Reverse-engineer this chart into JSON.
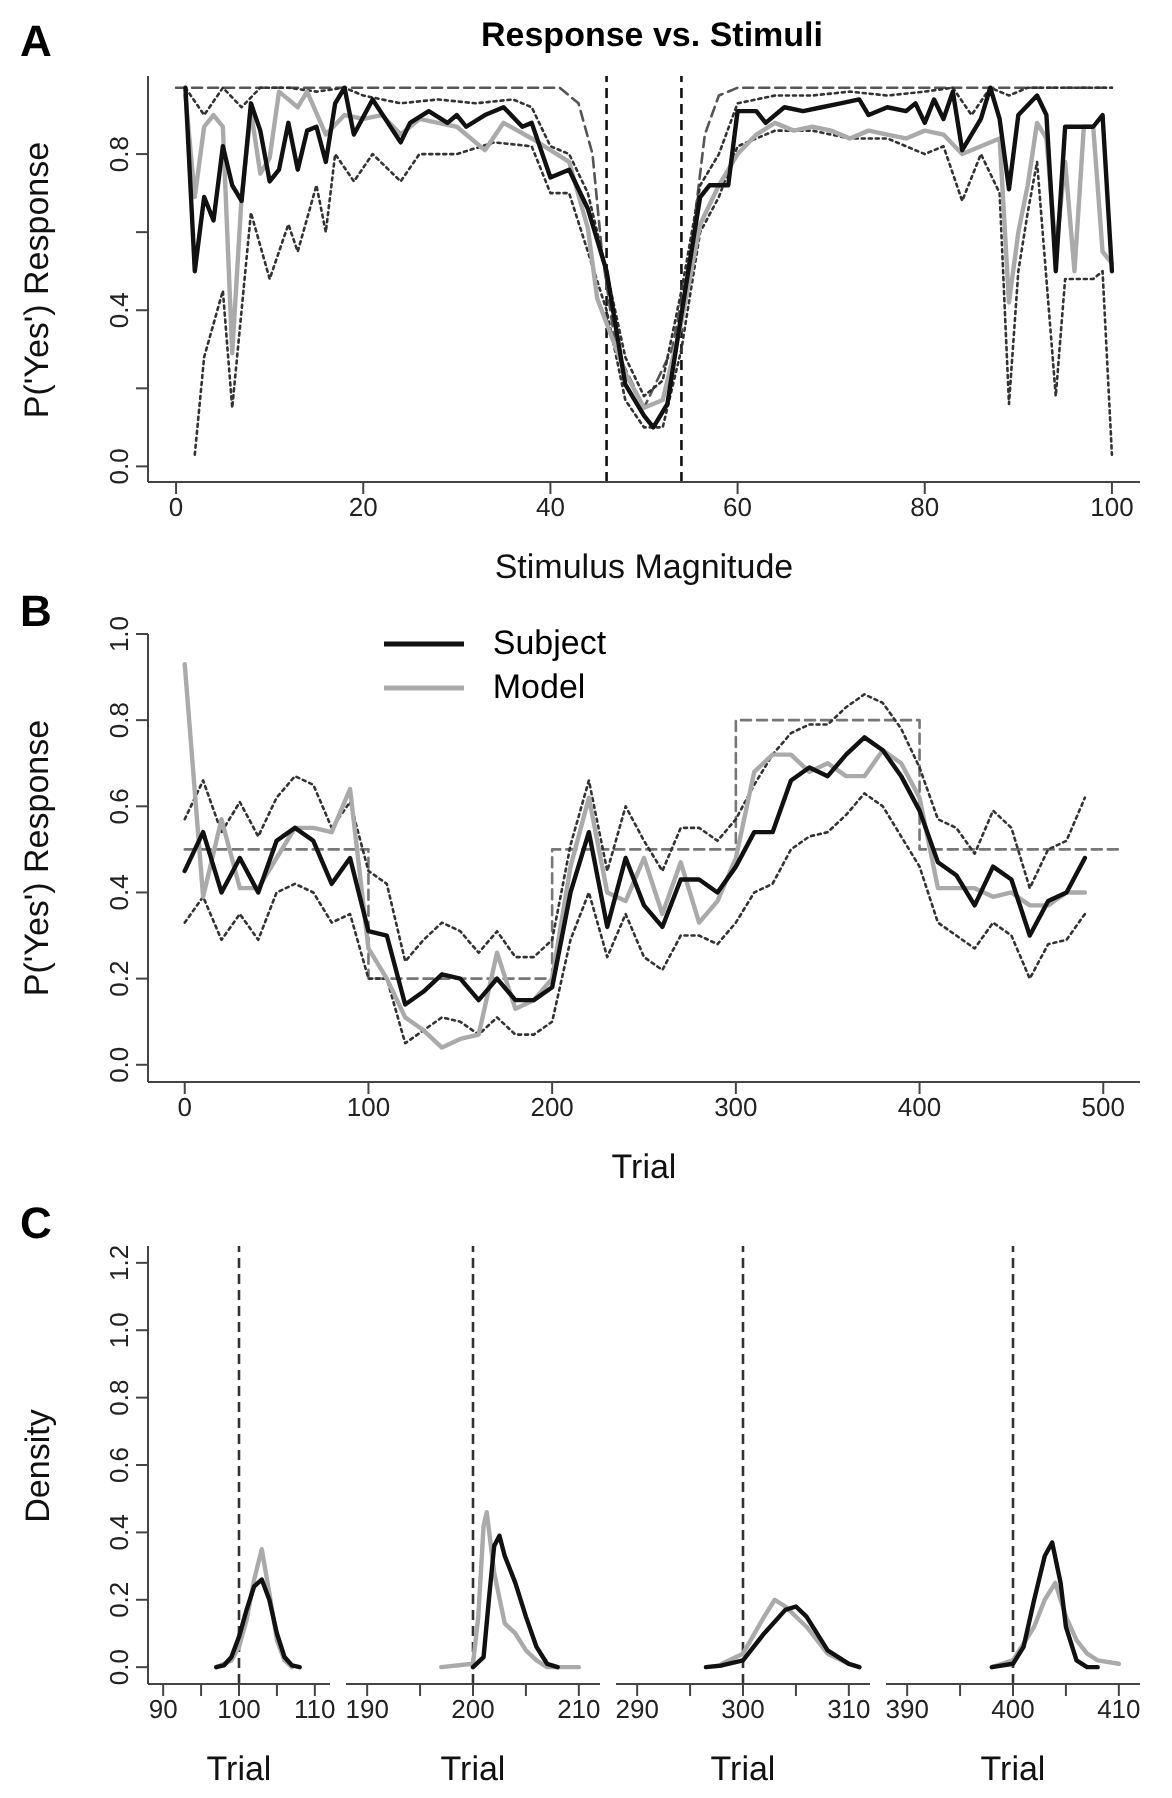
{
  "chart_data": [
    {
      "type": "line",
      "title": "Response vs. Stimuli",
      "annotations": [
        "A"
      ],
      "xlabel": "Stimulus Magnitude",
      "ylabel": "P('Yes') Response",
      "xlim": [
        -3,
        103
      ],
      "xticks": [
        0,
        20,
        40,
        60,
        80,
        100
      ],
      "ylim": [
        -0.04,
        1.0
      ],
      "yticks": [
        {
          "value": 0,
          "label": "0.0"
        },
        {
          "value": 0.2,
          "label": null
        },
        {
          "value": 0.4,
          "label": "0.4"
        },
        {
          "value": 0.6,
          "label": null
        },
        {
          "value": 0.8,
          "label": "0.8"
        }
      ],
      "legend": false,
      "ref_lines": [
        {
          "axis": "x",
          "value": 46,
          "color": "#111111",
          "line_style": "dashed"
        },
        {
          "axis": "x",
          "value": 54,
          "color": "#111111",
          "line_style": "dashed"
        }
      ],
      "series": [
        {
          "type": "line",
          "color": "#555555",
          "line_style": "dashed",
          "x": [
            0,
            41,
            43,
            44.5,
            45.5,
            47,
            50,
            53,
            55,
            56.5,
            58,
            60,
            100
          ],
          "values": [
            0.97,
            0.97,
            0.93,
            0.8,
            0.55,
            0.3,
            0.15,
            0.3,
            0.55,
            0.85,
            0.95,
            0.97,
            0.97
          ]
        },
        {
          "type": "line",
          "color": "#333333",
          "line_style": "dotted",
          "x": [
            1,
            3,
            5,
            7,
            9,
            12,
            15,
            18,
            20,
            24,
            28,
            32,
            36,
            38,
            40,
            42,
            44,
            46,
            48,
            50,
            52,
            54,
            56,
            58,
            60,
            64,
            68,
            72,
            76,
            80,
            83,
            85,
            87,
            89,
            91,
            94,
            96,
            100
          ],
          "values": [
            0.97,
            0.9,
            0.97,
            0.92,
            0.97,
            0.97,
            0.96,
            0.97,
            0.95,
            0.93,
            0.94,
            0.93,
            0.94,
            0.92,
            0.82,
            0.8,
            0.7,
            0.5,
            0.28,
            0.18,
            0.22,
            0.45,
            0.72,
            0.8,
            0.93,
            0.95,
            0.95,
            0.96,
            0.95,
            0.96,
            0.97,
            0.9,
            0.97,
            0.95,
            0.97,
            0.97,
            0.97,
            0.97
          ]
        },
        {
          "type": "line",
          "color": "#333333",
          "line_style": "dotted",
          "x": [
            2,
            3,
            5,
            6,
            8,
            10,
            12,
            13,
            15,
            16,
            17,
            19,
            21,
            24,
            26,
            30,
            34,
            38,
            40,
            42,
            44,
            46,
            48,
            50,
            52,
            54,
            56,
            58,
            60,
            64,
            68,
            72,
            76,
            80,
            82,
            84,
            86,
            88,
            89,
            90,
            91,
            92,
            94,
            95,
            98,
            99,
            100
          ],
          "values": [
            0.03,
            0.28,
            0.45,
            0.15,
            0.65,
            0.48,
            0.62,
            0.55,
            0.72,
            0.6,
            0.8,
            0.73,
            0.8,
            0.73,
            0.8,
            0.8,
            0.83,
            0.82,
            0.7,
            0.7,
            0.55,
            0.4,
            0.17,
            0.1,
            0.1,
            0.3,
            0.6,
            0.69,
            0.82,
            0.86,
            0.86,
            0.84,
            0.84,
            0.8,
            0.82,
            0.68,
            0.8,
            0.7,
            0.16,
            0.5,
            0.65,
            0.78,
            0.18,
            0.48,
            0.48,
            0.5,
            0.03
          ]
        },
        {
          "type": "line",
          "color": "#aaaaaa",
          "line_style": "solid",
          "x": [
            1,
            2,
            3,
            4,
            5,
            6,
            7,
            8,
            9,
            10,
            11,
            12,
            13,
            14,
            16,
            18,
            20,
            22,
            24,
            26,
            28,
            30,
            33,
            35,
            38,
            40,
            42,
            44,
            45,
            48,
            50,
            52,
            54,
            56,
            58,
            60,
            62,
            64,
            66,
            68,
            70,
            72,
            74,
            76,
            78,
            80,
            82,
            84,
            86,
            88,
            89,
            90,
            91,
            92,
            93,
            94,
            95,
            96,
            97,
            98,
            99,
            100
          ],
          "values": [
            0.95,
            0.69,
            0.87,
            0.9,
            0.87,
            0.29,
            0.69,
            0.91,
            0.75,
            0.79,
            0.96,
            0.94,
            0.92,
            0.96,
            0.85,
            0.9,
            0.89,
            0.9,
            0.85,
            0.89,
            0.88,
            0.87,
            0.81,
            0.88,
            0.84,
            0.81,
            0.78,
            0.61,
            0.43,
            0.24,
            0.15,
            0.17,
            0.37,
            0.62,
            0.72,
            0.8,
            0.85,
            0.88,
            0.86,
            0.87,
            0.86,
            0.84,
            0.86,
            0.85,
            0.84,
            0.86,
            0.85,
            0.8,
            0.82,
            0.84,
            0.42,
            0.6,
            0.72,
            0.88,
            0.84,
            0.55,
            0.78,
            0.5,
            0.87,
            0.87,
            0.55,
            0.52
          ]
        },
        {
          "type": "line",
          "color": "#111111",
          "line_style": "solid",
          "x": [
            1,
            2,
            3,
            4,
            5,
            6,
            7,
            8,
            9,
            10,
            11,
            12,
            13,
            14,
            15,
            16,
            17,
            18,
            19,
            21,
            24,
            25,
            27,
            29,
            30,
            31,
            33,
            35,
            37,
            38,
            40,
            42,
            43,
            44,
            45,
            46,
            48,
            50,
            51,
            52.5,
            54,
            56,
            57,
            59,
            60,
            62,
            63,
            65,
            67,
            69,
            71,
            73,
            74,
            76,
            78,
            79,
            80,
            81,
            82,
            83,
            84,
            86,
            87,
            88,
            89,
            90,
            92,
            93,
            94,
            95,
            98,
            99,
            100
          ],
          "values": [
            0.97,
            0.5,
            0.69,
            0.63,
            0.82,
            0.72,
            0.68,
            0.93,
            0.86,
            0.73,
            0.76,
            0.88,
            0.76,
            0.86,
            0.87,
            0.78,
            0.93,
            0.97,
            0.85,
            0.94,
            0.83,
            0.88,
            0.91,
            0.88,
            0.9,
            0.87,
            0.9,
            0.92,
            0.87,
            0.88,
            0.74,
            0.76,
            0.71,
            0.66,
            0.58,
            0.5,
            0.21,
            0.13,
            0.1,
            0.16,
            0.39,
            0.69,
            0.72,
            0.72,
            0.91,
            0.91,
            0.88,
            0.92,
            0.91,
            0.92,
            0.93,
            0.94,
            0.9,
            0.92,
            0.91,
            0.93,
            0.88,
            0.94,
            0.89,
            0.96,
            0.81,
            0.89,
            0.97,
            0.89,
            0.71,
            0.9,
            0.95,
            0.9,
            0.5,
            0.87,
            0.87,
            0.9,
            0.5
          ]
        }
      ]
    },
    {
      "type": "line",
      "annotations": [
        "B"
      ],
      "xlabel": "Trial",
      "ylabel": "P('Yes') Response",
      "xlim": [
        -20,
        520
      ],
      "xticks": [
        0,
        100,
        200,
        300,
        400,
        500
      ],
      "ylim": [
        -0.04,
        1.0
      ],
      "yticks": [
        {
          "value": 0,
          "label": "0.0"
        },
        {
          "value": 0.2,
          "label": "0.2"
        },
        {
          "value": 0.4,
          "label": "0.4"
        },
        {
          "value": 0.6,
          "label": "0.6"
        },
        {
          "value": 0.8,
          "label": "0.8"
        },
        {
          "value": 1,
          "label": "1.0"
        }
      ],
      "legend": "top",
      "x": [
        0,
        10,
        20,
        30,
        40,
        50,
        60,
        70,
        80,
        90,
        100,
        110,
        120,
        130,
        140,
        150,
        160,
        170,
        180,
        190,
        200,
        210,
        220,
        230,
        240,
        250,
        260,
        270,
        280,
        290,
        300,
        310,
        320,
        330,
        340,
        350,
        360,
        370,
        380,
        390,
        400,
        410,
        420,
        430,
        440,
        450,
        460,
        470,
        480,
        490
      ],
      "series": [
        {
          "type": "step",
          "color": "#777777",
          "line_style": "dashed",
          "x": [
            0,
            100,
            200,
            300,
            400,
            510
          ],
          "values": [
            0.5,
            0.2,
            0.5,
            0.8,
            0.5,
            0.5
          ]
        },
        {
          "type": "line",
          "color": "#333333",
          "line_style": "dotted",
          "values": [
            0.57,
            0.66,
            0.54,
            0.61,
            0.53,
            0.62,
            0.67,
            0.65,
            0.55,
            0.61,
            0.45,
            0.42,
            0.24,
            0.29,
            0.33,
            0.31,
            0.26,
            0.31,
            0.25,
            0.25,
            0.29,
            0.51,
            0.66,
            0.45,
            0.6,
            0.52,
            0.45,
            0.55,
            0.55,
            0.52,
            0.57,
            0.65,
            0.72,
            0.77,
            0.79,
            0.79,
            0.83,
            0.86,
            0.84,
            0.78,
            0.69,
            0.57,
            0.55,
            0.49,
            0.59,
            0.55,
            0.41,
            0.5,
            0.52,
            0.62
          ]
        },
        {
          "type": "line",
          "color": "#333333",
          "line_style": "dotted",
          "values": [
            0.33,
            0.39,
            0.29,
            0.35,
            0.29,
            0.4,
            0.42,
            0.4,
            0.33,
            0.35,
            0.2,
            0.2,
            0.05,
            0.08,
            0.11,
            0.1,
            0.07,
            0.11,
            0.07,
            0.07,
            0.1,
            0.29,
            0.4,
            0.25,
            0.35,
            0.25,
            0.22,
            0.3,
            0.3,
            0.28,
            0.33,
            0.4,
            0.42,
            0.5,
            0.53,
            0.54,
            0.58,
            0.63,
            0.6,
            0.53,
            0.46,
            0.33,
            0.3,
            0.27,
            0.33,
            0.3,
            0.2,
            0.28,
            0.29,
            0.35
          ]
        },
        {
          "type": "line",
          "name": "Model",
          "color": "#aaaaaa",
          "line_style": "solid",
          "values": [
            0.93,
            0.39,
            0.57,
            0.41,
            0.41,
            0.48,
            0.55,
            0.55,
            0.54,
            0.64,
            0.27,
            0.2,
            0.11,
            0.08,
            0.04,
            0.06,
            0.07,
            0.26,
            0.13,
            0.15,
            0.2,
            0.46,
            0.62,
            0.4,
            0.38,
            0.48,
            0.35,
            0.47,
            0.33,
            0.38,
            0.48,
            0.68,
            0.72,
            0.72,
            0.68,
            0.7,
            0.67,
            0.67,
            0.73,
            0.7,
            0.62,
            0.41,
            0.41,
            0.41,
            0.39,
            0.4,
            0.37,
            0.37,
            0.4,
            0.4
          ]
        },
        {
          "type": "line",
          "name": "Subject",
          "color": "#111111",
          "line_style": "solid",
          "values": [
            0.45,
            0.54,
            0.4,
            0.48,
            0.4,
            0.52,
            0.55,
            0.52,
            0.42,
            0.48,
            0.31,
            0.3,
            0.14,
            0.17,
            0.21,
            0.2,
            0.15,
            0.2,
            0.15,
            0.15,
            0.18,
            0.4,
            0.54,
            0.32,
            0.48,
            0.37,
            0.32,
            0.43,
            0.43,
            0.4,
            0.46,
            0.54,
            0.54,
            0.66,
            0.69,
            0.67,
            0.72,
            0.76,
            0.73,
            0.67,
            0.59,
            0.47,
            0.44,
            0.37,
            0.46,
            0.43,
            0.3,
            0.38,
            0.4,
            0.48
          ]
        }
      ]
    },
    {
      "type": "line",
      "annotations": [
        "C"
      ],
      "xlabel": "Trial",
      "ylabel": "Density",
      "xlim": [
        88,
        112
      ],
      "xticks": [
        90,
        {
          "value": 95,
          "label": null
        },
        100,
        {
          "value": 105,
          "label": null
        },
        110
      ],
      "ylim": [
        -0.05,
        1.25
      ],
      "yticks": [
        {
          "value": 0,
          "label": "0.0"
        },
        {
          "value": 0.2,
          "label": "0.2"
        },
        {
          "value": 0.4,
          "label": "0.4"
        },
        {
          "value": 0.6,
          "label": "0.6"
        },
        {
          "value": 0.8,
          "label": "0.8"
        },
        {
          "value": 1,
          "label": "1.0"
        },
        {
          "value": 1.2,
          "label": "1.2"
        }
      ],
      "ref_lines": [
        {
          "axis": "x",
          "value": 100,
          "color": "#333333",
          "line_style": "dashed"
        }
      ],
      "series": [
        {
          "type": "line",
          "color": "#aaaaaa",
          "line_style": "solid",
          "x": [
            97,
            99,
            100,
            101,
            102,
            103,
            104,
            105,
            106,
            107
          ],
          "values": [
            0,
            0.02,
            0.06,
            0.14,
            0.26,
            0.35,
            0.22,
            0.08,
            0.02,
            0
          ]
        },
        {
          "type": "line",
          "color": "#111111",
          "line_style": "solid",
          "x": [
            97,
            98,
            99,
            100,
            101,
            102,
            103,
            104,
            105,
            106,
            107,
            108
          ],
          "values": [
            0,
            0.005,
            0.03,
            0.09,
            0.17,
            0.24,
            0.26,
            0.2,
            0.1,
            0.03,
            0.005,
            0
          ]
        }
      ]
    },
    {
      "type": "line",
      "xlabel": "Trial",
      "tick_labels": "x",
      "xlim": [
        188,
        212
      ],
      "xticks": [
        190,
        {
          "value": 195,
          "label": null
        },
        200,
        {
          "value": 205,
          "label": null
        },
        210
      ],
      "ylim": [
        -0.05,
        1.25
      ],
      "ref_lines": [
        {
          "axis": "x",
          "value": 200,
          "color": "#333333",
          "line_style": "dashed"
        }
      ],
      "series": [
        {
          "type": "line",
          "color": "#aaaaaa",
          "line_style": "solid",
          "x": [
            197,
            200,
            200.5,
            201,
            201.3,
            202,
            203,
            204,
            205,
            206,
            207,
            210
          ],
          "values": [
            0,
            0.01,
            0.15,
            0.42,
            0.46,
            0.28,
            0.13,
            0.1,
            0.05,
            0.02,
            0,
            0
          ]
        },
        {
          "type": "line",
          "color": "#111111",
          "line_style": "solid",
          "x": [
            200,
            201,
            201.5,
            202,
            202.5,
            203,
            204,
            205,
            206,
            207,
            208
          ],
          "values": [
            0,
            0.03,
            0.2,
            0.36,
            0.39,
            0.33,
            0.25,
            0.15,
            0.06,
            0.01,
            0
          ]
        }
      ]
    },
    {
      "type": "line",
      "xlabel": "Trial",
      "tick_labels": "x",
      "xlim": [
        288,
        312
      ],
      "xticks": [
        290,
        {
          "value": 295,
          "label": null
        },
        300,
        {
          "value": 305,
          "label": null
        },
        310
      ],
      "ylim": [
        -0.05,
        1.25
      ],
      "ref_lines": [
        {
          "axis": "x",
          "value": 300,
          "color": "#333333",
          "line_style": "dashed"
        }
      ],
      "series": [
        {
          "type": "line",
          "color": "#aaaaaa",
          "line_style": "solid",
          "x": [
            298,
            300,
            302,
            303,
            304,
            306,
            308,
            310
          ],
          "values": [
            0.01,
            0.04,
            0.15,
            0.2,
            0.18,
            0.12,
            0.04,
            0.01
          ]
        },
        {
          "type": "line",
          "color": "#111111",
          "line_style": "solid",
          "x": [
            296.5,
            298,
            300,
            302,
            304,
            305,
            306,
            308,
            310,
            311
          ],
          "values": [
            0,
            0.005,
            0.02,
            0.1,
            0.17,
            0.18,
            0.15,
            0.05,
            0.01,
            0
          ]
        }
      ]
    },
    {
      "type": "line",
      "xlabel": "Trial",
      "tick_labels": "x",
      "xlim": [
        388,
        412
      ],
      "xticks": [
        390,
        {
          "value": 395,
          "label": null
        },
        400,
        {
          "value": 405,
          "label": null
        },
        410
      ],
      "ylim": [
        -0.05,
        1.25
      ],
      "ref_lines": [
        {
          "axis": "x",
          "value": 400,
          "color": "#333333",
          "line_style": "dashed"
        }
      ],
      "series": [
        {
          "type": "line",
          "color": "#aaaaaa",
          "line_style": "solid",
          "x": [
            398,
            400,
            402,
            403,
            404,
            405,
            406,
            407,
            408,
            410
          ],
          "values": [
            0,
            0.02,
            0.12,
            0.2,
            0.25,
            0.15,
            0.08,
            0.04,
            0.02,
            0.01
          ]
        },
        {
          "type": "line",
          "color": "#111111",
          "line_style": "solid",
          "x": [
            398,
            400,
            401,
            402,
            403,
            403.7,
            404.5,
            405,
            406,
            407,
            408
          ],
          "values": [
            0,
            0.01,
            0.06,
            0.2,
            0.33,
            0.37,
            0.25,
            0.12,
            0.02,
            0,
            0
          ]
        }
      ]
    }
  ]
}
